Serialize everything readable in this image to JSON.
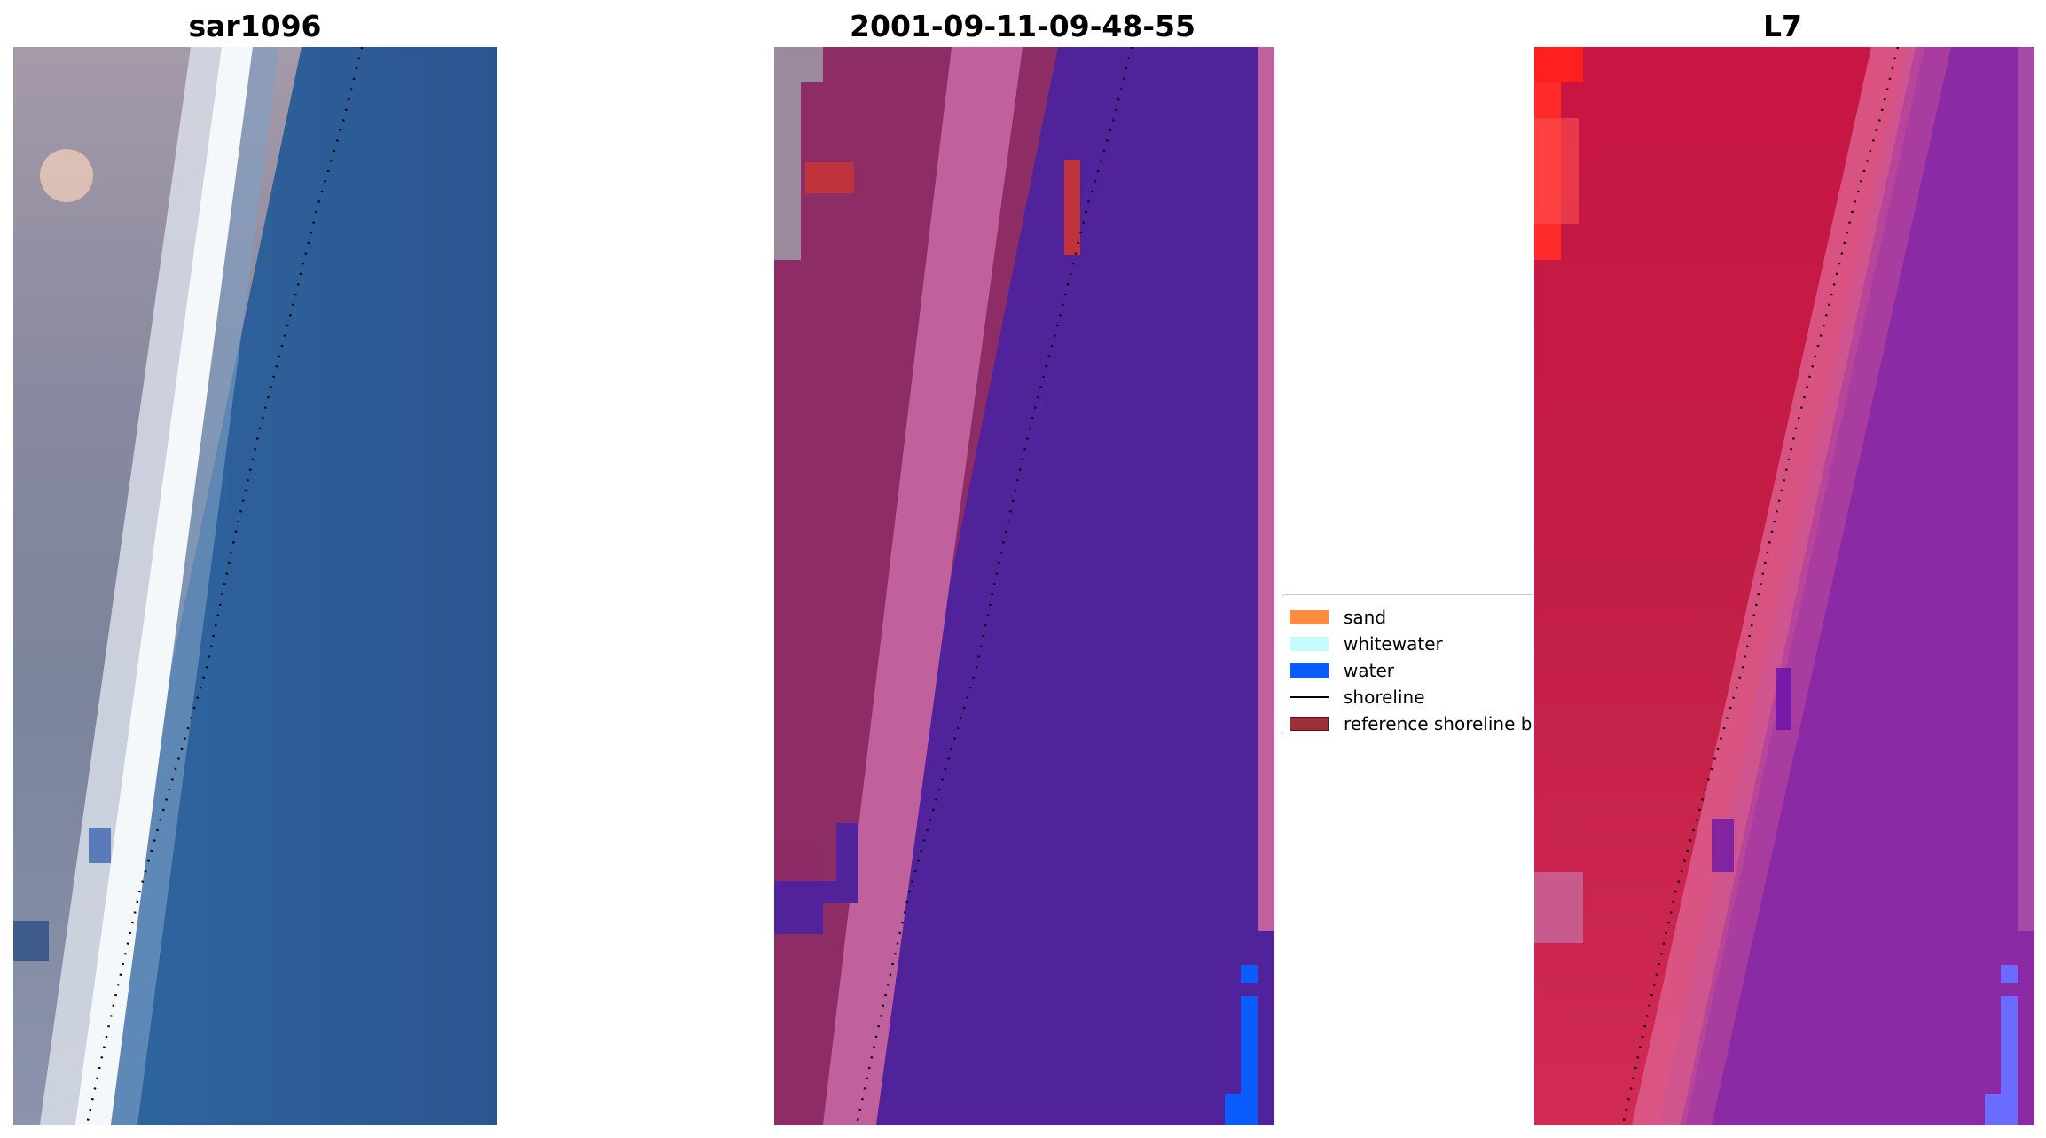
{
  "titles": {
    "left": "sar1096",
    "middle": "2001-09-11-09-48-55",
    "right": "L7"
  },
  "legend": [
    {
      "label": "sand",
      "type": "patch",
      "color": "#ff8c3f"
    },
    {
      "label": "whitewater",
      "type": "patch",
      "color": "#c6fbfd"
    },
    {
      "label": "water",
      "type": "patch",
      "color": "#0a5cff"
    },
    {
      "label": "shoreline",
      "type": "line",
      "color": "#000000"
    },
    {
      "label": "reference shoreline b",
      "type": "patch",
      "color": "#9c3038",
      "edge": "#5a1518"
    }
  ],
  "colors": {
    "left_land": "#8a8aa3",
    "left_surf": "#f4f7fa",
    "left_water": "#2d5c96",
    "mid_land": "#8e2c66",
    "mid_beach": "#c0609c",
    "mid_water": "#50239a",
    "mid_edge": "#c0609c",
    "mid_blue": "#0a5cff",
    "mid_red": "#c0333c",
    "right_land": "#c51e45",
    "right_beach": "#dc5d8c",
    "right_water": "#8a28a4",
    "right_red": "#ff2020",
    "right_blue": "#6b6bff"
  }
}
